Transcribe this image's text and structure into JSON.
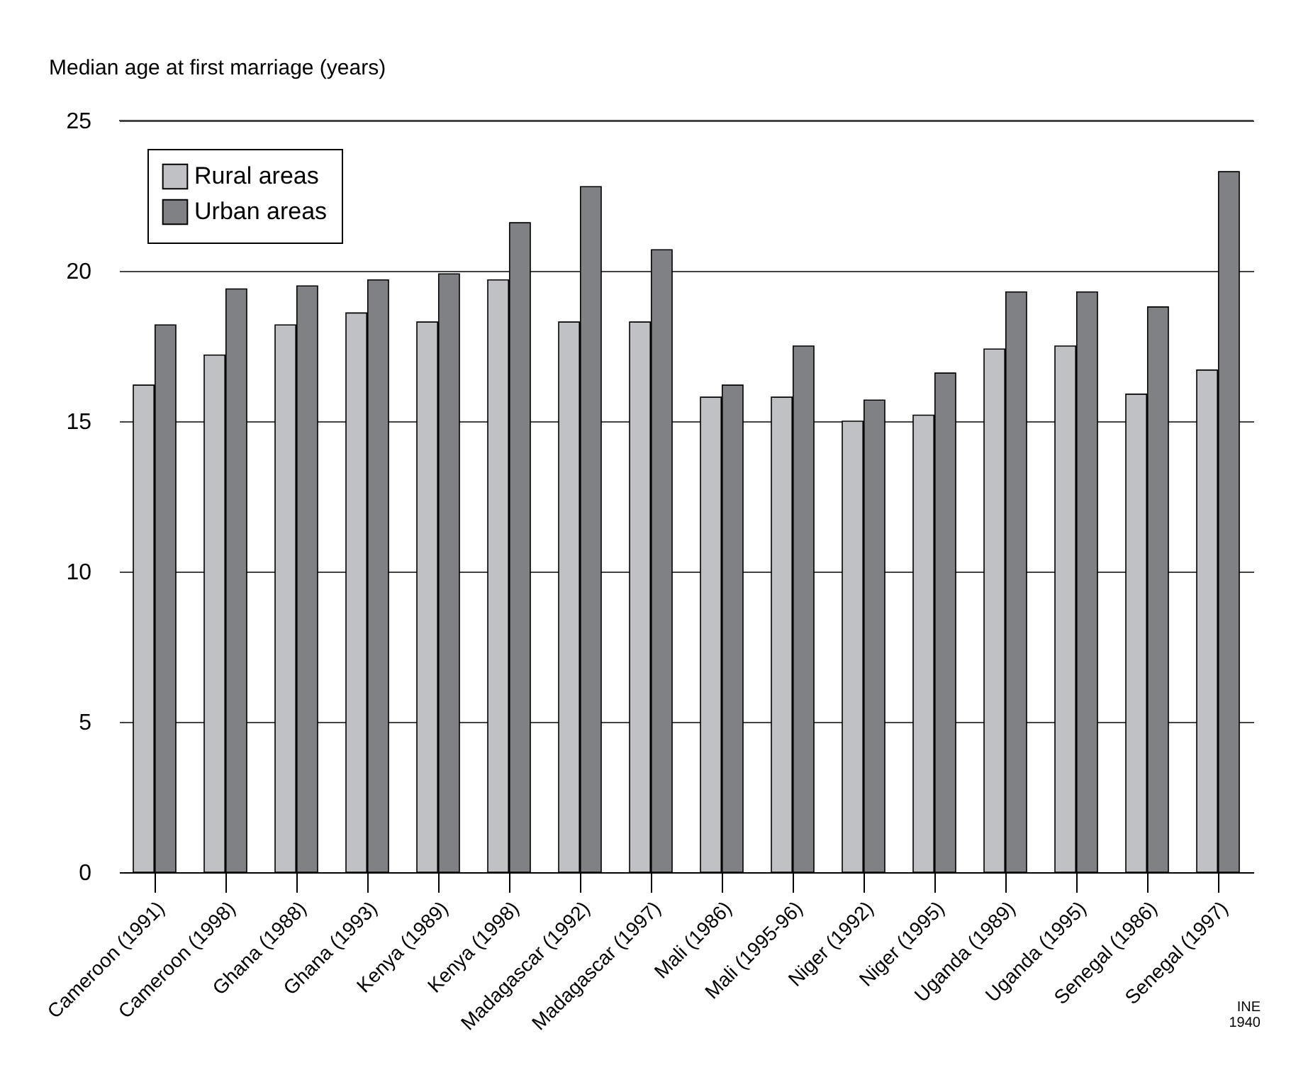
{
  "chart_data": {
    "type": "bar",
    "ylabel": "Median age at first marriage (years)",
    "categories": [
      "Cameroon (1991)",
      "Cameroon (1998)",
      "Ghana (1988)",
      "Ghana (1993)",
      "Kenya (1989)",
      "Kenya (1998)",
      "Madagascar (1992)",
      "Madagascar (1997)",
      "Mali (1986)",
      "Mali (1995-96)",
      "Niger (1992)",
      "Niger (1995)",
      "Uganda (1989)",
      "Uganda (1995)",
      "Senegal (1986)",
      "Senegal (1997)"
    ],
    "series": [
      {
        "name": "Rural areas",
        "color": "#c0c1c4",
        "values": [
          16.2,
          17.2,
          18.2,
          18.6,
          18.3,
          19.7,
          18.3,
          18.3,
          15.8,
          15.8,
          15.0,
          15.2,
          17.4,
          17.5,
          15.9,
          16.7
        ]
      },
      {
        "name": "Urban areas",
        "color": "#808185",
        "values": [
          18.2,
          19.4,
          19.5,
          19.7,
          19.9,
          21.6,
          22.8,
          20.7,
          16.2,
          17.5,
          15.7,
          16.6,
          19.3,
          19.3,
          18.8,
          23.3
        ]
      }
    ],
    "ylim": [
      0,
      25
    ],
    "yticks": [
      0,
      5,
      10,
      15,
      20,
      25
    ],
    "grid": "y",
    "legend": "top left",
    "annotations": [
      "INE",
      "1940"
    ]
  }
}
